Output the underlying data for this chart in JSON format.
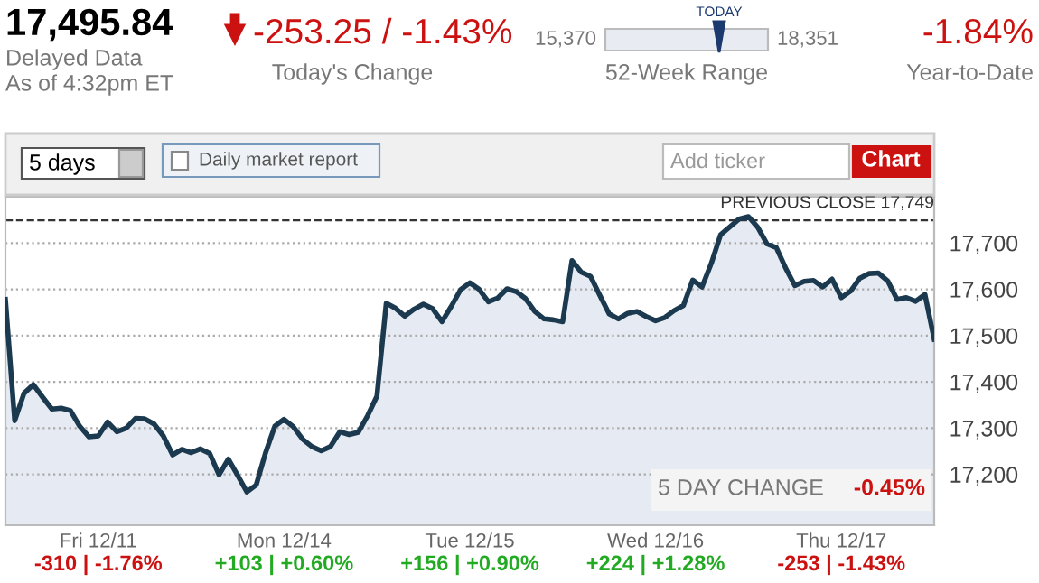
{
  "chart_data": {
    "type": "area",
    "title": "17,495.84",
    "categories": [
      null,
      null,
      null,
      null,
      null,
      null,
      null,
      null,
      null,
      null,
      "Fri 12/11",
      null,
      null,
      null,
      null,
      null,
      null,
      null,
      null,
      null,
      null,
      null,
      null,
      null,
      null,
      null,
      null,
      null,
      null,
      null,
      "Mon 12/14",
      null,
      null,
      null,
      null,
      null,
      null,
      null,
      null,
      null,
      null,
      null,
      null,
      null,
      null,
      null,
      null,
      null,
      null,
      null,
      "Tue 12/15",
      null,
      null,
      null,
      null,
      null,
      null,
      null,
      null,
      null,
      null,
      null,
      null,
      null,
      null,
      null,
      null,
      null,
      null,
      null,
      "Wed 12/16",
      null,
      null,
      null,
      null,
      null,
      null,
      null,
      null,
      null,
      null,
      null,
      null,
      null,
      null,
      null,
      null,
      null,
      null,
      null,
      "Thu 12/17",
      null,
      null,
      null,
      null,
      null,
      null,
      null,
      null,
      null,
      null
    ],
    "series": [
      {
        "color": "#1c3a4f",
        "values": [
          17578,
          17316,
          17375,
          17394,
          17367,
          17341,
          17343,
          17338,
          17304,
          17281,
          17283,
          17313,
          17292,
          17300,
          17321,
          17320,
          17309,
          17283,
          17242,
          17254,
          17247,
          17255,
          17245,
          17199,
          17233,
          17198,
          17162,
          17177,
          17246,
          17304,
          17319,
          17303,
          17276,
          17260,
          17251,
          17260,
          17292,
          17286,
          17291,
          17327,
          17369,
          17570,
          17559,
          17542,
          17557,
          17568,
          17558,
          17530,
          17563,
          17599,
          17614,
          17600,
          17573,
          17581,
          17601,
          17595,
          17580,
          17552,
          17536,
          17534,
          17530,
          17662,
          17637,
          17628,
          17587,
          17547,
          17536,
          17548,
          17552,
          17541,
          17532,
          17539,
          17554,
          17565,
          17620,
          17605,
          17656,
          17718,
          17735,
          17752,
          17757,
          17734,
          17698,
          17690,
          17646,
          17608,
          17617,
          17619,
          17605,
          17622,
          17582,
          17596,
          17624,
          17634,
          17635,
          17618,
          17578,
          17582,
          17574,
          17589,
          17492
        ]
      }
    ],
    "ylim": [
      17090,
      17800
    ],
    "yticks": [
      {
        "value": 17200,
        "label": "17,200"
      },
      {
        "value": 17300,
        "label": "17,300"
      },
      {
        "value": 17400,
        "label": "17,400"
      },
      {
        "value": 17500,
        "label": "17,500"
      },
      {
        "value": 17600,
        "label": "17,600"
      },
      {
        "value": 17700,
        "label": "17,700"
      }
    ],
    "grid": "y",
    "ref_lines": [
      {
        "axis": "y",
        "value": 17749,
        "label": "PREVIOUS CLOSE 17,749",
        "color": "#333333",
        "line_style": "dashed"
      }
    ],
    "annotations": [
      "Delayed Data",
      "As of 4:32pm ET",
      "-253.25 / -1.43%",
      "Today's Change",
      "15,370",
      "18,351",
      "TODAY",
      "52-Week Range",
      "-1.84%",
      "Year-to-Date",
      "5 days",
      "Daily market report",
      "Add ticker",
      "Chart",
      "5 DAY CHANGE",
      "-0.45%",
      "-310 | -1.76%",
      "+103 | +0.60%",
      "+156 | +0.90%",
      "+224 | +1.28%",
      "-253 | -1.43%"
    ]
  }
}
